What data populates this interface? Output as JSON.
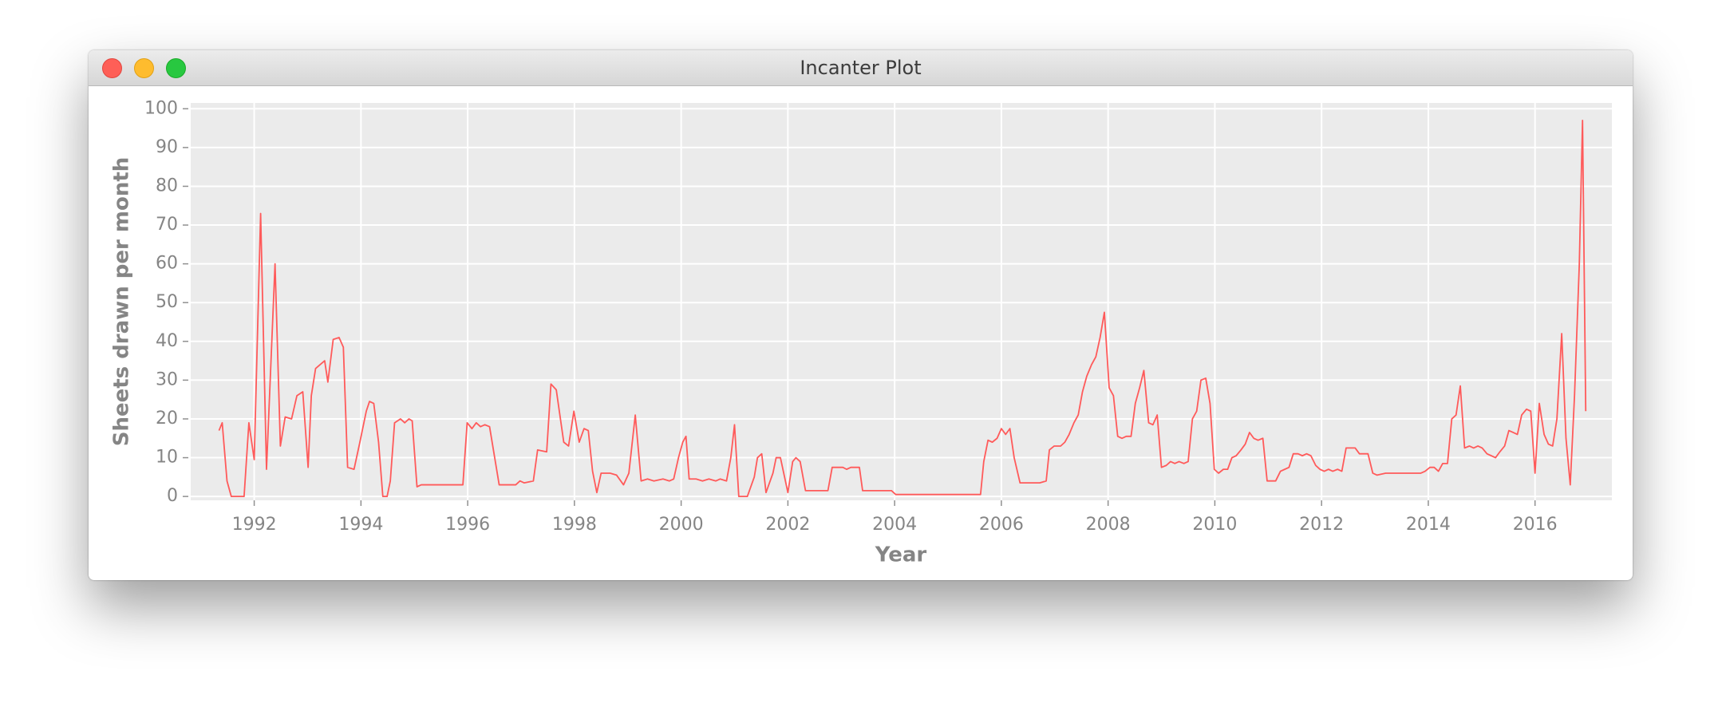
{
  "window": {
    "title": "Incanter Plot"
  },
  "chart_data": {
    "type": "line",
    "x_label": "Year",
    "y_label": "Sheets drawn per month",
    "x": [
      1991.34,
      1991.4,
      1991.49,
      1991.57,
      1991.81,
      1991.9,
      1992.0,
      1992.12,
      1992.23,
      1992.39,
      1992.49,
      1992.58,
      1992.7,
      1992.8,
      1992.91,
      1993.01,
      1993.07,
      1993.15,
      1993.32,
      1993.38,
      1993.48,
      1993.59,
      1993.67,
      1993.75,
      1993.87,
      1993.98,
      1994.1,
      1994.16,
      1994.24,
      1994.33,
      1994.41,
      1994.49,
      1994.55,
      1994.63,
      1994.74,
      1994.82,
      1994.9,
      1994.96,
      1995.05,
      1995.13,
      1995.91,
      1995.99,
      1996.08,
      1996.16,
      1996.24,
      1996.32,
      1996.41,
      1996.59,
      1996.9,
      1996.98,
      1997.06,
      1997.23,
      1997.31,
      1997.48,
      1997.56,
      1997.66,
      1997.8,
      1997.89,
      1997.99,
      1998.09,
      1998.18,
      1998.26,
      1998.34,
      1998.42,
      1998.5,
      1998.67,
      1998.79,
      1998.92,
      1999.02,
      1999.14,
      1999.25,
      1999.37,
      1999.49,
      1999.66,
      1999.78,
      1999.86,
      1999.95,
      2000.03,
      2000.09,
      2000.15,
      2000.28,
      2000.4,
      2000.52,
      2000.65,
      2000.73,
      2000.85,
      2000.93,
      2001.0,
      2001.08,
      2001.24,
      2001.37,
      2001.43,
      2001.51,
      2001.59,
      2001.72,
      2001.78,
      2001.86,
      2002.0,
      2002.09,
      2002.15,
      2002.23,
      2002.33,
      2002.75,
      2002.83,
      2003.03,
      2003.1,
      2003.18,
      2003.34,
      2003.4,
      2003.94,
      2004.02,
      2005.61,
      2005.67,
      2005.75,
      2005.83,
      2005.92,
      2006.0,
      2006.08,
      2006.16,
      2006.24,
      2006.35,
      2006.72,
      2006.84,
      2006.9,
      2006.99,
      2007.11,
      2007.19,
      2007.27,
      2007.36,
      2007.44,
      2007.52,
      2007.6,
      2007.69,
      2007.77,
      2007.85,
      2007.93,
      2008.02,
      2008.1,
      2008.18,
      2008.26,
      2008.34,
      2008.43,
      2008.51,
      2008.59,
      2008.67,
      2008.76,
      2008.84,
      2008.92,
      2009.0,
      2009.09,
      2009.17,
      2009.25,
      2009.33,
      2009.42,
      2009.5,
      2009.58,
      2009.66,
      2009.74,
      2009.83,
      2009.91,
      2009.99,
      2010.07,
      2010.16,
      2010.24,
      2010.32,
      2010.4,
      2010.49,
      2010.57,
      2010.65,
      2010.73,
      2010.81,
      2010.9,
      2010.98,
      2011.14,
      2011.23,
      2011.31,
      2011.39,
      2011.47,
      2011.56,
      2011.64,
      2011.72,
      2011.8,
      2011.89,
      2011.97,
      2012.05,
      2012.13,
      2012.21,
      2012.3,
      2012.38,
      2012.46,
      2012.63,
      2012.71,
      2012.87,
      2012.96,
      2013.04,
      2013.2,
      2013.86,
      2013.94,
      2014.03,
      2014.11,
      2014.19,
      2014.27,
      2014.36,
      2014.44,
      2014.52,
      2014.6,
      2014.68,
      2014.77,
      2014.85,
      2014.93,
      2015.01,
      2015.1,
      2015.18,
      2015.26,
      2015.34,
      2015.43,
      2015.51,
      2015.59,
      2015.67,
      2015.75,
      2015.84,
      2015.92,
      2016.0,
      2016.08,
      2016.17,
      2016.25,
      2016.33,
      2016.41,
      2016.5,
      2016.58,
      2016.66,
      2016.74,
      2016.83,
      2016.89,
      2016.95
    ],
    "values": [
      17,
      19,
      4,
      0,
      0,
      19,
      9.5,
      73,
      7,
      60,
      13,
      20.5,
      20,
      26,
      27,
      7.5,
      26,
      33,
      35,
      29.5,
      40.5,
      41,
      38.5,
      7.5,
      7,
      14,
      22,
      24.5,
      24,
      14,
      0,
      0,
      4,
      19,
      20,
      19,
      20,
      19.5,
      2.5,
      3,
      3,
      19,
      17.5,
      19,
      18,
      18.5,
      18,
      3,
      3,
      4,
      3.5,
      4,
      12,
      11.5,
      29,
      27.5,
      14,
      13,
      22,
      14,
      17.5,
      17,
      6.5,
      1,
      6,
      6,
      5.5,
      3,
      6,
      21,
      4,
      4.5,
      4,
      4.5,
      4,
      4.5,
      10,
      14,
      15.5,
      4.5,
      4.5,
      4,
      4.5,
      4,
      4.5,
      4,
      10,
      18.5,
      0,
      0,
      5,
      10,
      11,
      1,
      6,
      10,
      10,
      1,
      9,
      10,
      9,
      1.5,
      1.5,
      7.5,
      7.5,
      7,
      7.5,
      7.5,
      1.5,
      1.5,
      0.5,
      0.5,
      9,
      14.5,
      14,
      15,
      17.5,
      16,
      17.5,
      10,
      3.5,
      3.5,
      4,
      12,
      13,
      13,
      14,
      16,
      19,
      21,
      27,
      31,
      34,
      36,
      41,
      47.5,
      28,
      26,
      15.5,
      15,
      15.5,
      15.5,
      24,
      28,
      32.5,
      19,
      18.5,
      21,
      7.5,
      8,
      9,
      8.5,
      9,
      8.5,
      9,
      20,
      22,
      30,
      30.5,
      24,
      7,
      6,
      7,
      7,
      10,
      10.5,
      12,
      13.5,
      16.5,
      15,
      14.5,
      15,
      4,
      4,
      6.5,
      7,
      7.5,
      11,
      11,
      10.5,
      11,
      10.5,
      8,
      7,
      6.5,
      7,
      6.5,
      7,
      6.5,
      12.5,
      12.5,
      11,
      11,
      6,
      5.5,
      6,
      6,
      6.5,
      7.5,
      7.5,
      6.5,
      8.5,
      8.5,
      20,
      21,
      28.5,
      12.5,
      13,
      12.5,
      13,
      12.5,
      11,
      10.5,
      10,
      11.5,
      13,
      17,
      16.5,
      16,
      21,
      22.5,
      22,
      6,
      24,
      16,
      13.5,
      13,
      20,
      42,
      15,
      3,
      26,
      60,
      97,
      22
    ],
    "color": "#ff5a5a",
    "xlim": [
      1990.81,
      2017.44
    ],
    "xticks": [
      1992,
      1994,
      1996,
      1998,
      2000,
      2002,
      2004,
      2006,
      2008,
      2010,
      2012,
      2014,
      2016
    ],
    "ylim": [
      -1,
      101.5
    ],
    "yticks": [
      0,
      10,
      20,
      30,
      40,
      50,
      60,
      70,
      80,
      90,
      100
    ],
    "grid": true
  }
}
